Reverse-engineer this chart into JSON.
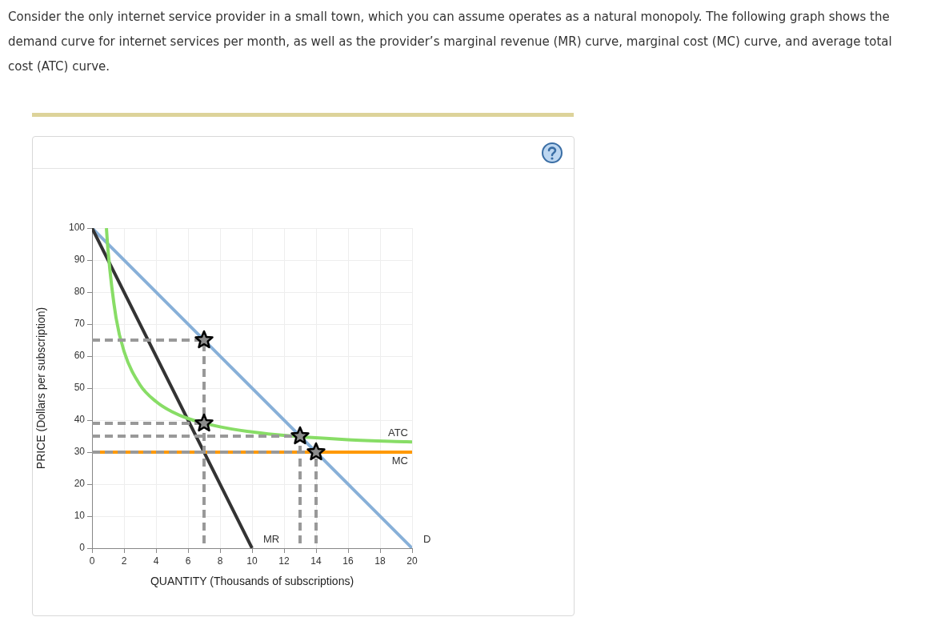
{
  "chart_data": {
    "type": "line",
    "title": "Consider the only internet service provider in a small town, which you can assume operates as a natural monopoly. The following graph shows the demand curve for internet services per month, as well as the provider’s marginal revenue (MR) curve, marginal cost (MC) curve, and average total cost (ATC) curve.",
    "xlabel": "QUANTITY (Thousands of subscriptions)",
    "ylabel": "PRICE (Dollars per subscription)",
    "xlim": [
      0,
      20
    ],
    "xticks": [
      0,
      2,
      4,
      6,
      8,
      10,
      12,
      14,
      16,
      18,
      20
    ],
    "ylim": [
      0,
      100
    ],
    "yticks": [
      0,
      10,
      20,
      30,
      40,
      50,
      60,
      70,
      80,
      90,
      100
    ],
    "grid": true,
    "legend": false,
    "marker": "none",
    "line_style": "solid",
    "series": [
      {
        "name": "ATC",
        "color": "#88dd66",
        "x": [
          0.9,
          1,
          1.5,
          2,
          3,
          4,
          5,
          6,
          8,
          10,
          11,
          16,
          20
        ],
        "values": [
          100,
          93,
          72,
          61.5,
          51,
          45.8,
          42.6,
          40.5,
          37.9,
          36.3,
          35.7,
          33.9,
          33.2
        ]
      },
      {
        "name": "MC",
        "color": "#ff9900",
        "x": [
          0,
          20
        ],
        "values": [
          30,
          30
        ]
      },
      {
        "name": "MR",
        "color": "#333333",
        "x": [
          0,
          10
        ],
        "values": [
          100,
          0
        ]
      },
      {
        "name": "D",
        "color": "#88b0d8",
        "x": [
          0,
          20
        ],
        "values": [
          100,
          0
        ]
      },
      {
        "color": "#999999",
        "line_style": "dashed",
        "x": [
          0,
          7,
          7
        ],
        "values": [
          65,
          65,
          0
        ]
      },
      {
        "color": "#999999",
        "line_style": "dashed",
        "x": [
          0,
          7
        ],
        "values": [
          39,
          39
        ]
      },
      {
        "color": "#999999",
        "line_style": "dashed",
        "x": [
          0,
          13,
          13
        ],
        "values": [
          35,
          35,
          0
        ]
      },
      {
        "color": "#999999",
        "line_style": "dashed",
        "x": [
          0,
          14,
          14
        ],
        "values": [
          30,
          30,
          0
        ]
      },
      {
        "type": "scatter",
        "marker": "star",
        "color": "#8c8c8c",
        "x": [
          7,
          7,
          13,
          14
        ],
        "values": [
          65,
          39,
          35,
          30
        ]
      }
    ]
  }
}
